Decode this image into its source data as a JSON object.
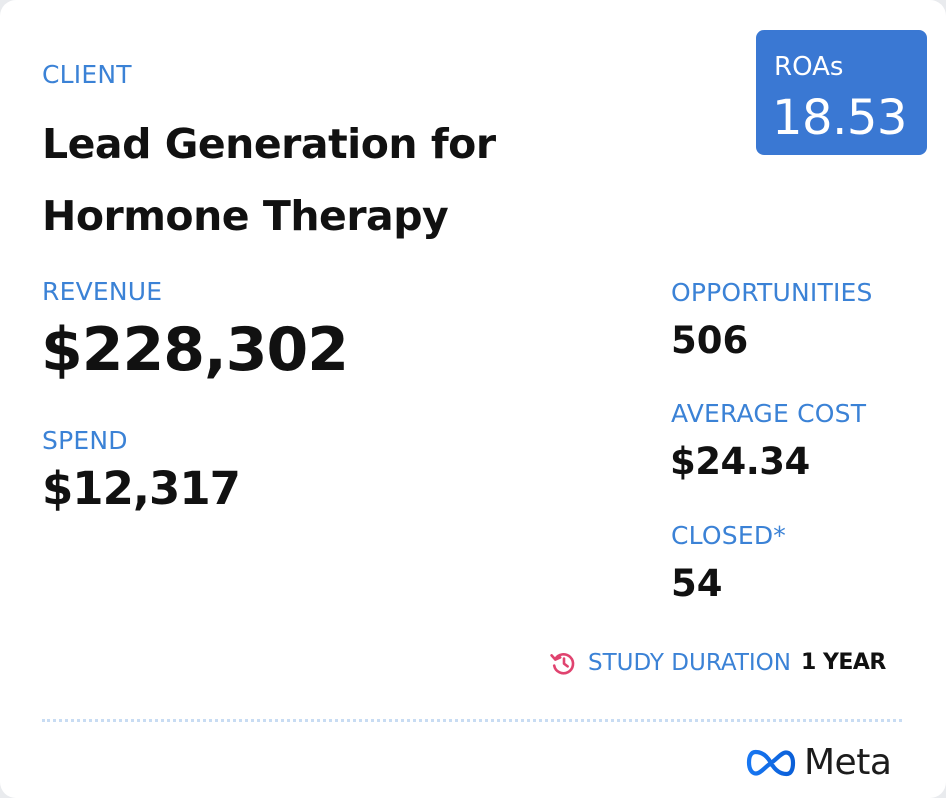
{
  "header": {
    "client_label": "CLIENT",
    "title": "Lead Generation for Hormone Therapy"
  },
  "roas": {
    "label": "ROAs",
    "value": "18.53"
  },
  "metrics": {
    "revenue_label": "REVENUE",
    "revenue_value": "$228,302",
    "spend_label": "SPEND",
    "spend_value": "$12,317",
    "opportunities_label": "OPPORTUNITIES",
    "opportunities_value": "506",
    "average_cost_label": "AVERAGE COST",
    "average_cost_value": "$24.34",
    "closed_label": "CLOSED*",
    "closed_value": "54"
  },
  "study": {
    "label": "STUDY DURATION",
    "value": "1 YEAR",
    "icon": "history-clock-icon"
  },
  "footer": {
    "brand_name": "Meta",
    "brand_icon": "meta-infinity-logo"
  },
  "colors": {
    "accent_blue": "#3b82d6",
    "roas_background": "#3a78d3",
    "icon_pink": "#e0436f",
    "text_dark": "#111111",
    "card_background": "#ffffff"
  }
}
